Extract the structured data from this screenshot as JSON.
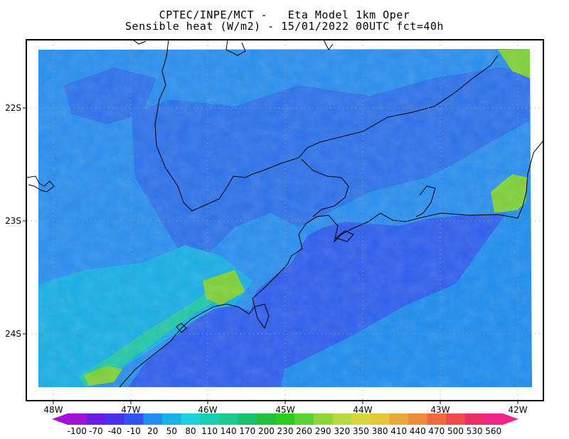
{
  "header": {
    "title_line1": "CPTEC/INPE/MCT -   Eta Model 1km Oper",
    "title_line2": "Sensible heat (W/m2) - 15/01/2022 00UTC fct=40h"
  },
  "map": {
    "lon_labels": [
      "48W",
      "47W",
      "46W",
      "45W",
      "44W",
      "43W",
      "42W"
    ],
    "lat_labels": [
      "22S",
      "23S",
      "24S"
    ],
    "grid": true,
    "colors": {
      "ocean": "#2f5fef",
      "ocean_shelf": "#1f8ef0",
      "land_base": "#2a8ff0",
      "land_cool": "#2d72ec",
      "land_warm": "#18b0e6",
      "land_hot": "#23c8a8",
      "land_peak": "#7fd23a"
    }
  },
  "colorbar": {
    "labels": [
      "-100",
      "-70",
      "-40",
      "-10",
      "20",
      "50",
      "80",
      "110",
      "140",
      "170",
      "200",
      "230",
      "260",
      "290",
      "320",
      "350",
      "380",
      "410",
      "440",
      "470",
      "500",
      "530",
      "560"
    ],
    "colors": [
      "#a012d6",
      "#6a1be6",
      "#4a2ff0",
      "#2f52f0",
      "#1f8ef0",
      "#15b3ea",
      "#1ad2dc",
      "#18cfb4",
      "#1cc98e",
      "#19c26a",
      "#1fbf3f",
      "#2bcc1c",
      "#5ad232",
      "#8ed43a",
      "#b4da3e",
      "#d8d83a",
      "#e6c73a",
      "#e8a83a",
      "#ec8c3a",
      "#ef6a40",
      "#f04a4c",
      "#ee2c68",
      "#f0258a"
    ],
    "left_end": "#a012d6",
    "right_end": "#f0258a"
  }
}
